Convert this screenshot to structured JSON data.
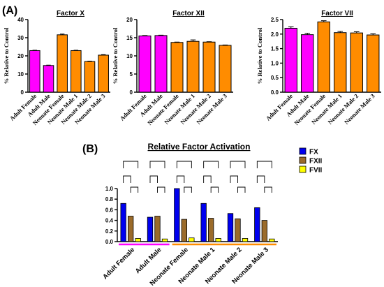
{
  "panel_a": {
    "label": "(A)",
    "ylabel": "% Relative to Control",
    "categories": [
      "Adult Female",
      "Adult Male",
      "Neonate Female",
      "Neonate Male 1",
      "Neonate Male 2",
      "Neonate Male 3"
    ]
  },
  "panel_b": {
    "label": "(B)"
  },
  "colors": {
    "adult": "#ff00ff",
    "neonate": "#ff8c00",
    "fx": "#0000ee",
    "fxii": "#9b6b2a",
    "fvii": "#ffff00"
  },
  "chart_data": [
    {
      "type": "bar",
      "title": "Factor X",
      "ylabel": "% Relative to Control",
      "categories": [
        "Adult Female",
        "Adult Male",
        "Neonate Female",
        "Neonate Male 1",
        "Neonate Male 2",
        "Neonate Male 3"
      ],
      "values": [
        22.9,
        14.7,
        31.6,
        22.9,
        16.9,
        20.4
      ],
      "errors": [
        0.2,
        0.2,
        0.4,
        0.2,
        0.2,
        0.3
      ],
      "ylim": [
        0,
        40
      ],
      "yticks": [
        "0",
        "10",
        "20",
        "30",
        "40"
      ],
      "bar_colors": [
        "#ff00ff",
        "#ff00ff",
        "#ff8c00",
        "#ff8c00",
        "#ff8c00",
        "#ff8c00"
      ]
    },
    {
      "type": "bar",
      "title": "Factor XII",
      "ylabel": "% Relative to Control",
      "categories": [
        "Adult Female",
        "Adult Male",
        "Neonate Female",
        "Neonate Male 1",
        "Neonate Male 2",
        "Neonate Male 3"
      ],
      "values": [
        15.5,
        15.6,
        13.7,
        14.0,
        13.8,
        12.9
      ],
      "errors": [
        0.1,
        0.1,
        0.1,
        0.4,
        0.1,
        0.1
      ],
      "ylim": [
        0,
        20
      ],
      "yticks": [
        "0",
        "5",
        "10",
        "15",
        "20"
      ],
      "bar_colors": [
        "#ff00ff",
        "#ff00ff",
        "#ff8c00",
        "#ff8c00",
        "#ff8c00",
        "#ff8c00"
      ]
    },
    {
      "type": "bar",
      "title": "Factor VII",
      "ylabel": "% Relative to Control",
      "categories": [
        "Adult Female",
        "Adult Male",
        "Neonate Female",
        "Neonate Male 1",
        "Neonate Male 2",
        "Neonate Male 3"
      ],
      "values": [
        2.2,
        1.98,
        2.42,
        2.05,
        2.04,
        1.97
      ],
      "errors": [
        0.05,
        0.05,
        0.04,
        0.04,
        0.04,
        0.04
      ],
      "ylim": [
        0,
        2.5
      ],
      "yticks": [
        "0.0",
        "0.5",
        "1.0",
        "1.5",
        "2.0",
        "2.5"
      ],
      "bar_colors": [
        "#ff00ff",
        "#ff00ff",
        "#ff8c00",
        "#ff8c00",
        "#ff8c00",
        "#ff8c00"
      ]
    },
    {
      "type": "bar",
      "title": "Relative Factor Activation",
      "categories": [
        "Adult Female",
        "Adult Male",
        "Neonate Female",
        "Neonate Male 1",
        "Neonate Male 2",
        "Neonate Male 3"
      ],
      "series": [
        {
          "name": "FX",
          "color": "#0000ee",
          "values": [
            0.72,
            0.46,
            1.0,
            0.72,
            0.53,
            0.64
          ]
        },
        {
          "name": "FXII",
          "color": "#9b6b2a",
          "values": [
            0.48,
            0.48,
            0.42,
            0.44,
            0.43,
            0.4
          ]
        },
        {
          "name": "FVII",
          "color": "#ffff00",
          "values": [
            0.06,
            0.05,
            0.07,
            0.06,
            0.06,
            0.05
          ]
        }
      ],
      "ylim": [
        0,
        1.0
      ],
      "yticks": [
        "0.0",
        "0.2",
        "0.4",
        "0.6",
        "0.8",
        "1.0"
      ],
      "legend": "top-right",
      "group_underlines": [
        {
          "color": "#ff00ff",
          "from": 0,
          "to": 1
        },
        {
          "color": "#ff8c00",
          "from": 2,
          "to": 5
        }
      ]
    }
  ]
}
